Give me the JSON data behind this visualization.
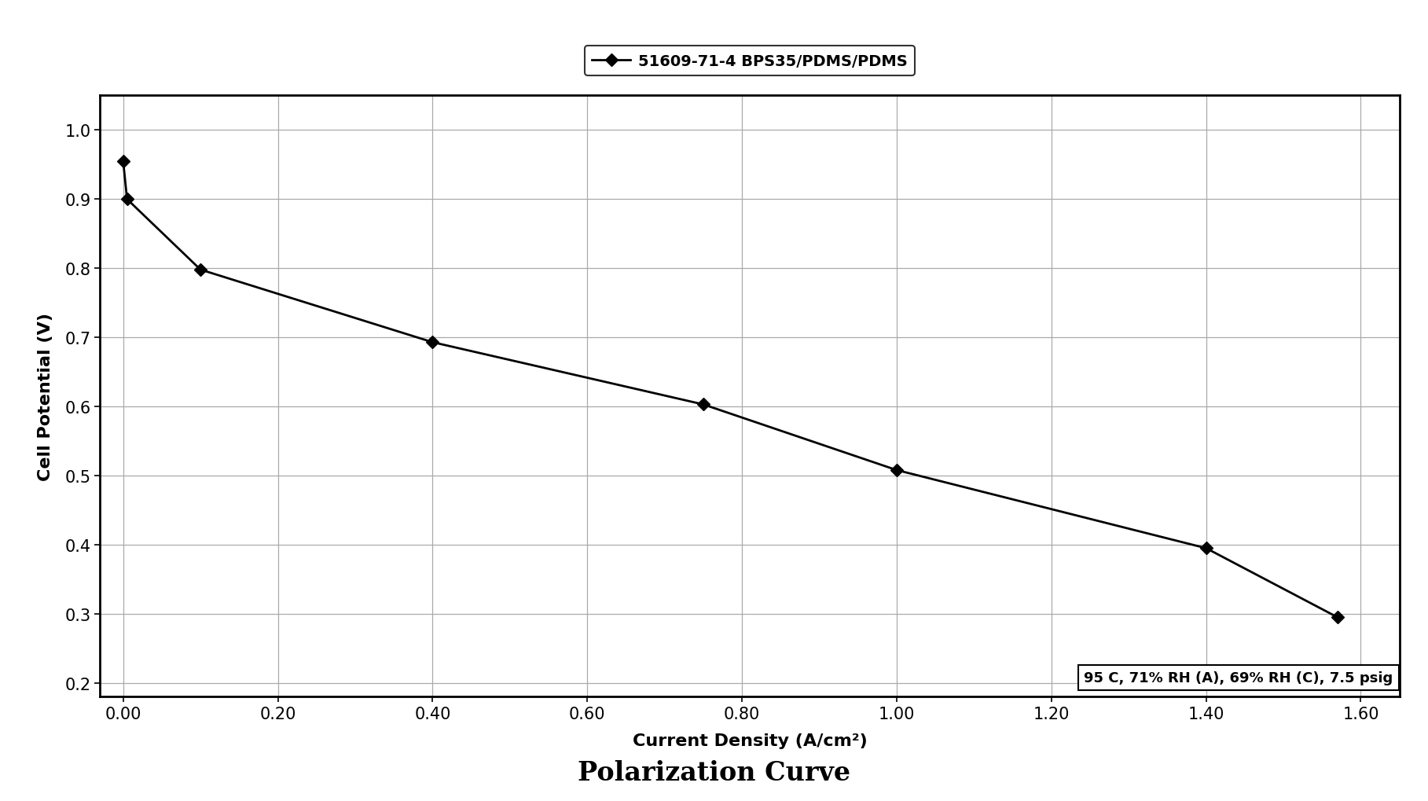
{
  "x": [
    0.0,
    0.005,
    0.1,
    0.4,
    0.75,
    1.0,
    1.4,
    1.57
  ],
  "y": [
    0.955,
    0.9,
    0.798,
    0.693,
    0.603,
    0.508,
    0.395,
    0.295
  ],
  "line_color": "#000000",
  "marker": "D",
  "marker_size": 8,
  "legend_label": "51609-71-4 BPS35/PDMS/PDMS",
  "xlabel": "Current Density (A/cm²)",
  "ylabel": "Cell Potential (V)",
  "title": "Polarization Curve",
  "annotation": "95 C, 71% RH (A), 69% RH (C), 7.5 psig",
  "xlim": [
    -0.03,
    1.65
  ],
  "ylim": [
    0.18,
    1.05
  ],
  "xticks": [
    0.0,
    0.2,
    0.4,
    0.6,
    0.8,
    1.0,
    1.2,
    1.4,
    1.6
  ],
  "yticks": [
    0.2,
    0.3,
    0.4,
    0.5,
    0.6,
    0.7,
    0.8,
    0.9,
    1.0
  ],
  "grid_color": "#aaaaaa",
  "background_color": "#ffffff",
  "title_fontsize": 24,
  "label_fontsize": 16,
  "tick_fontsize": 15,
  "legend_fontsize": 14,
  "annotation_fontsize": 13
}
